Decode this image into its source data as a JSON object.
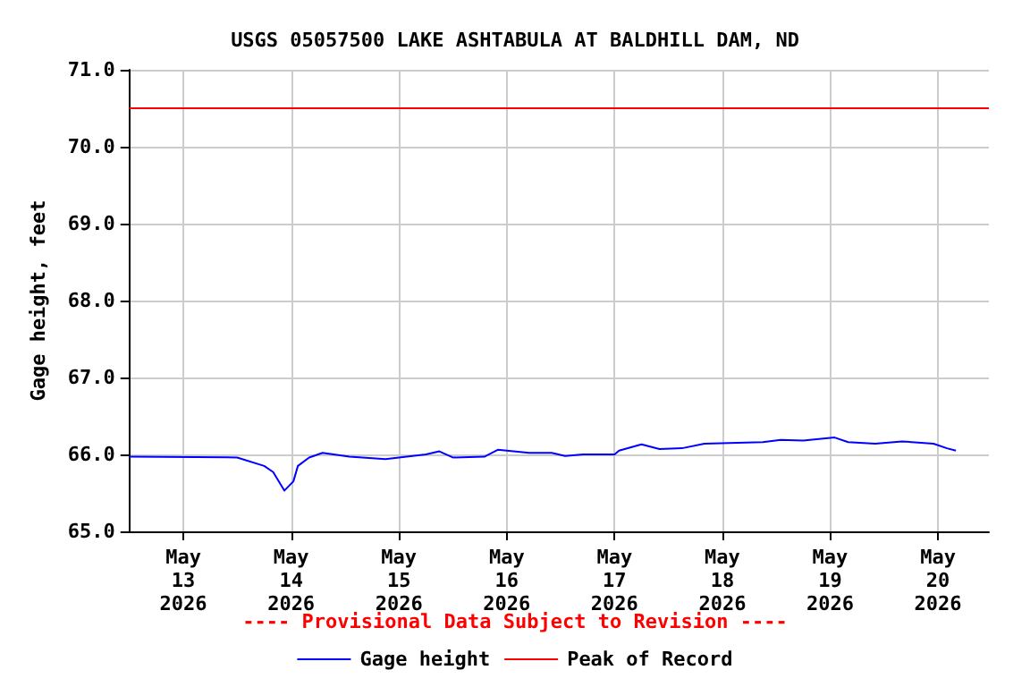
{
  "chart_data": {
    "type": "line",
    "title": "USGS 05057500 LAKE ASHTABULA AT BALDHILL DAM, ND",
    "ylabel": "Gage height, feet",
    "x": [
      "2026-05-12T12:00",
      "2026-05-13T12:00",
      "2026-05-13T18:00",
      "2026-05-13T20:00",
      "2026-05-13T22:30",
      "2026-05-14T00:30",
      "2026-05-14T01:30",
      "2026-05-14T04:00",
      "2026-05-14T07:00",
      "2026-05-14T13:00",
      "2026-05-14T21:00",
      "2026-05-15T06:00",
      "2026-05-15T09:00",
      "2026-05-15T12:00",
      "2026-05-15T19:00",
      "2026-05-15T22:00",
      "2026-05-16T05:00",
      "2026-05-16T10:00",
      "2026-05-16T13:00",
      "2026-05-16T17:00",
      "2026-05-17T00:00",
      "2026-05-17T01:00",
      "2026-05-17T06:00",
      "2026-05-17T10:00",
      "2026-05-17T15:00",
      "2026-05-17T20:00",
      "2026-05-18T09:00",
      "2026-05-18T13:00",
      "2026-05-18T18:00",
      "2026-05-19T01:00",
      "2026-05-19T04:00",
      "2026-05-19T10:00",
      "2026-05-19T16:00",
      "2026-05-19T23:00",
      "2026-05-20T02:00",
      "2026-05-20T04:00"
    ],
    "series": [
      {
        "name": "Gage height",
        "color": "#0000ff",
        "values": [
          65.97,
          65.96,
          65.85,
          65.77,
          65.53,
          65.65,
          65.85,
          65.96,
          66.02,
          65.97,
          65.94,
          66.0,
          66.04,
          65.96,
          65.97,
          66.06,
          66.02,
          66.02,
          65.98,
          66.0,
          66.0,
          66.05,
          66.13,
          66.07,
          66.08,
          66.14,
          66.16,
          66.19,
          66.18,
          66.22,
          66.16,
          66.14,
          66.17,
          66.14,
          66.08,
          66.05
        ]
      }
    ],
    "ref_lines": [
      {
        "axis": "y",
        "value": 70.5,
        "label": "Peak of Record",
        "color": "#ff0000"
      }
    ],
    "annotations": [
      "---- Provisional Data Subject to Revision ----"
    ],
    "xlim": [
      "2026-05-12T12:00",
      "2026-05-20T11:20"
    ],
    "xticks": [
      {
        "value": "2026-05-13",
        "label": "May\n13\n2026"
      },
      {
        "value": "2026-05-14",
        "label": "May\n14\n2026"
      },
      {
        "value": "2026-05-15",
        "label": "May\n15\n2026"
      },
      {
        "value": "2026-05-16",
        "label": "May\n16\n2026"
      },
      {
        "value": "2026-05-17",
        "label": "May\n17\n2026"
      },
      {
        "value": "2026-05-18",
        "label": "May\n18\n2026"
      },
      {
        "value": "2026-05-19",
        "label": "May\n19\n2026"
      },
      {
        "value": "2026-05-20",
        "label": "May\n20\n2026"
      }
    ],
    "ylim": [
      65,
      71
    ],
    "yticks": [
      {
        "value": 65,
        "label": "65.0"
      },
      {
        "value": 66,
        "label": "66.0"
      },
      {
        "value": 67,
        "label": "67.0"
      },
      {
        "value": 68,
        "label": "68.0"
      },
      {
        "value": 69,
        "label": "69.0"
      },
      {
        "value": 70,
        "label": "70.0"
      },
      {
        "value": 71,
        "label": "71.0"
      }
    ],
    "grid": true,
    "legend": "bottom",
    "marker": "none",
    "line_style": "solid"
  }
}
